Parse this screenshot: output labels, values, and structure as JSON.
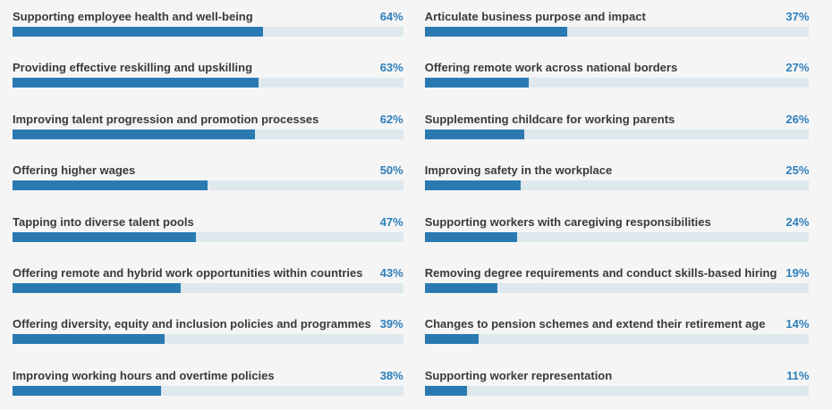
{
  "chart_data": {
    "type": "bar",
    "orientation": "horizontal",
    "unit": "%",
    "xlim": [
      0,
      100
    ],
    "grid": false,
    "legend": false,
    "columns": [
      {
        "items": [
          {
            "label": "Supporting employee health and well-being",
            "value": 64,
            "display": "64%"
          },
          {
            "label": "Providing effective reskilling and upskilling",
            "value": 63,
            "display": "63%"
          },
          {
            "label": "Improving talent progression and promotion processes",
            "value": 62,
            "display": "62%"
          },
          {
            "label": "Offering higher wages",
            "value": 50,
            "display": "50%"
          },
          {
            "label": "Tapping into diverse talent pools",
            "value": 47,
            "display": "47%"
          },
          {
            "label": "Offering remote and hybrid work opportunities within countries",
            "value": 43,
            "display": "43%"
          },
          {
            "label": "Offering diversity, equity and inclusion policies and programmes",
            "value": 39,
            "display": "39%"
          },
          {
            "label": "Improving working hours and overtime policies",
            "value": 38,
            "display": "38%"
          }
        ]
      },
      {
        "items": [
          {
            "label": "Articulate business purpose and impact",
            "value": 37,
            "display": "37%"
          },
          {
            "label": "Offering remote work across national borders",
            "value": 27,
            "display": "27%"
          },
          {
            "label": "Supplementing childcare for working parents",
            "value": 26,
            "display": "26%"
          },
          {
            "label": "Improving safety in the workplace",
            "value": 25,
            "display": "25%"
          },
          {
            "label": "Supporting workers with caregiving responsibilities",
            "value": 24,
            "display": "24%"
          },
          {
            "label": "Removing degree requirements and conduct skills-based hiring",
            "value": 19,
            "display": "19%"
          },
          {
            "label": "Changes to pension schemes and extend their retirement age",
            "value": 14,
            "display": "14%"
          },
          {
            "label": "Supporting worker representation",
            "value": 11,
            "display": "11%"
          }
        ]
      }
    ]
  },
  "colors": {
    "bar_fill": "#2a7ab1",
    "bar_track": "#dee8ed",
    "value_text": "#2e7fba",
    "label_text": "#3a3a3a",
    "background": "#f5f5f6"
  }
}
